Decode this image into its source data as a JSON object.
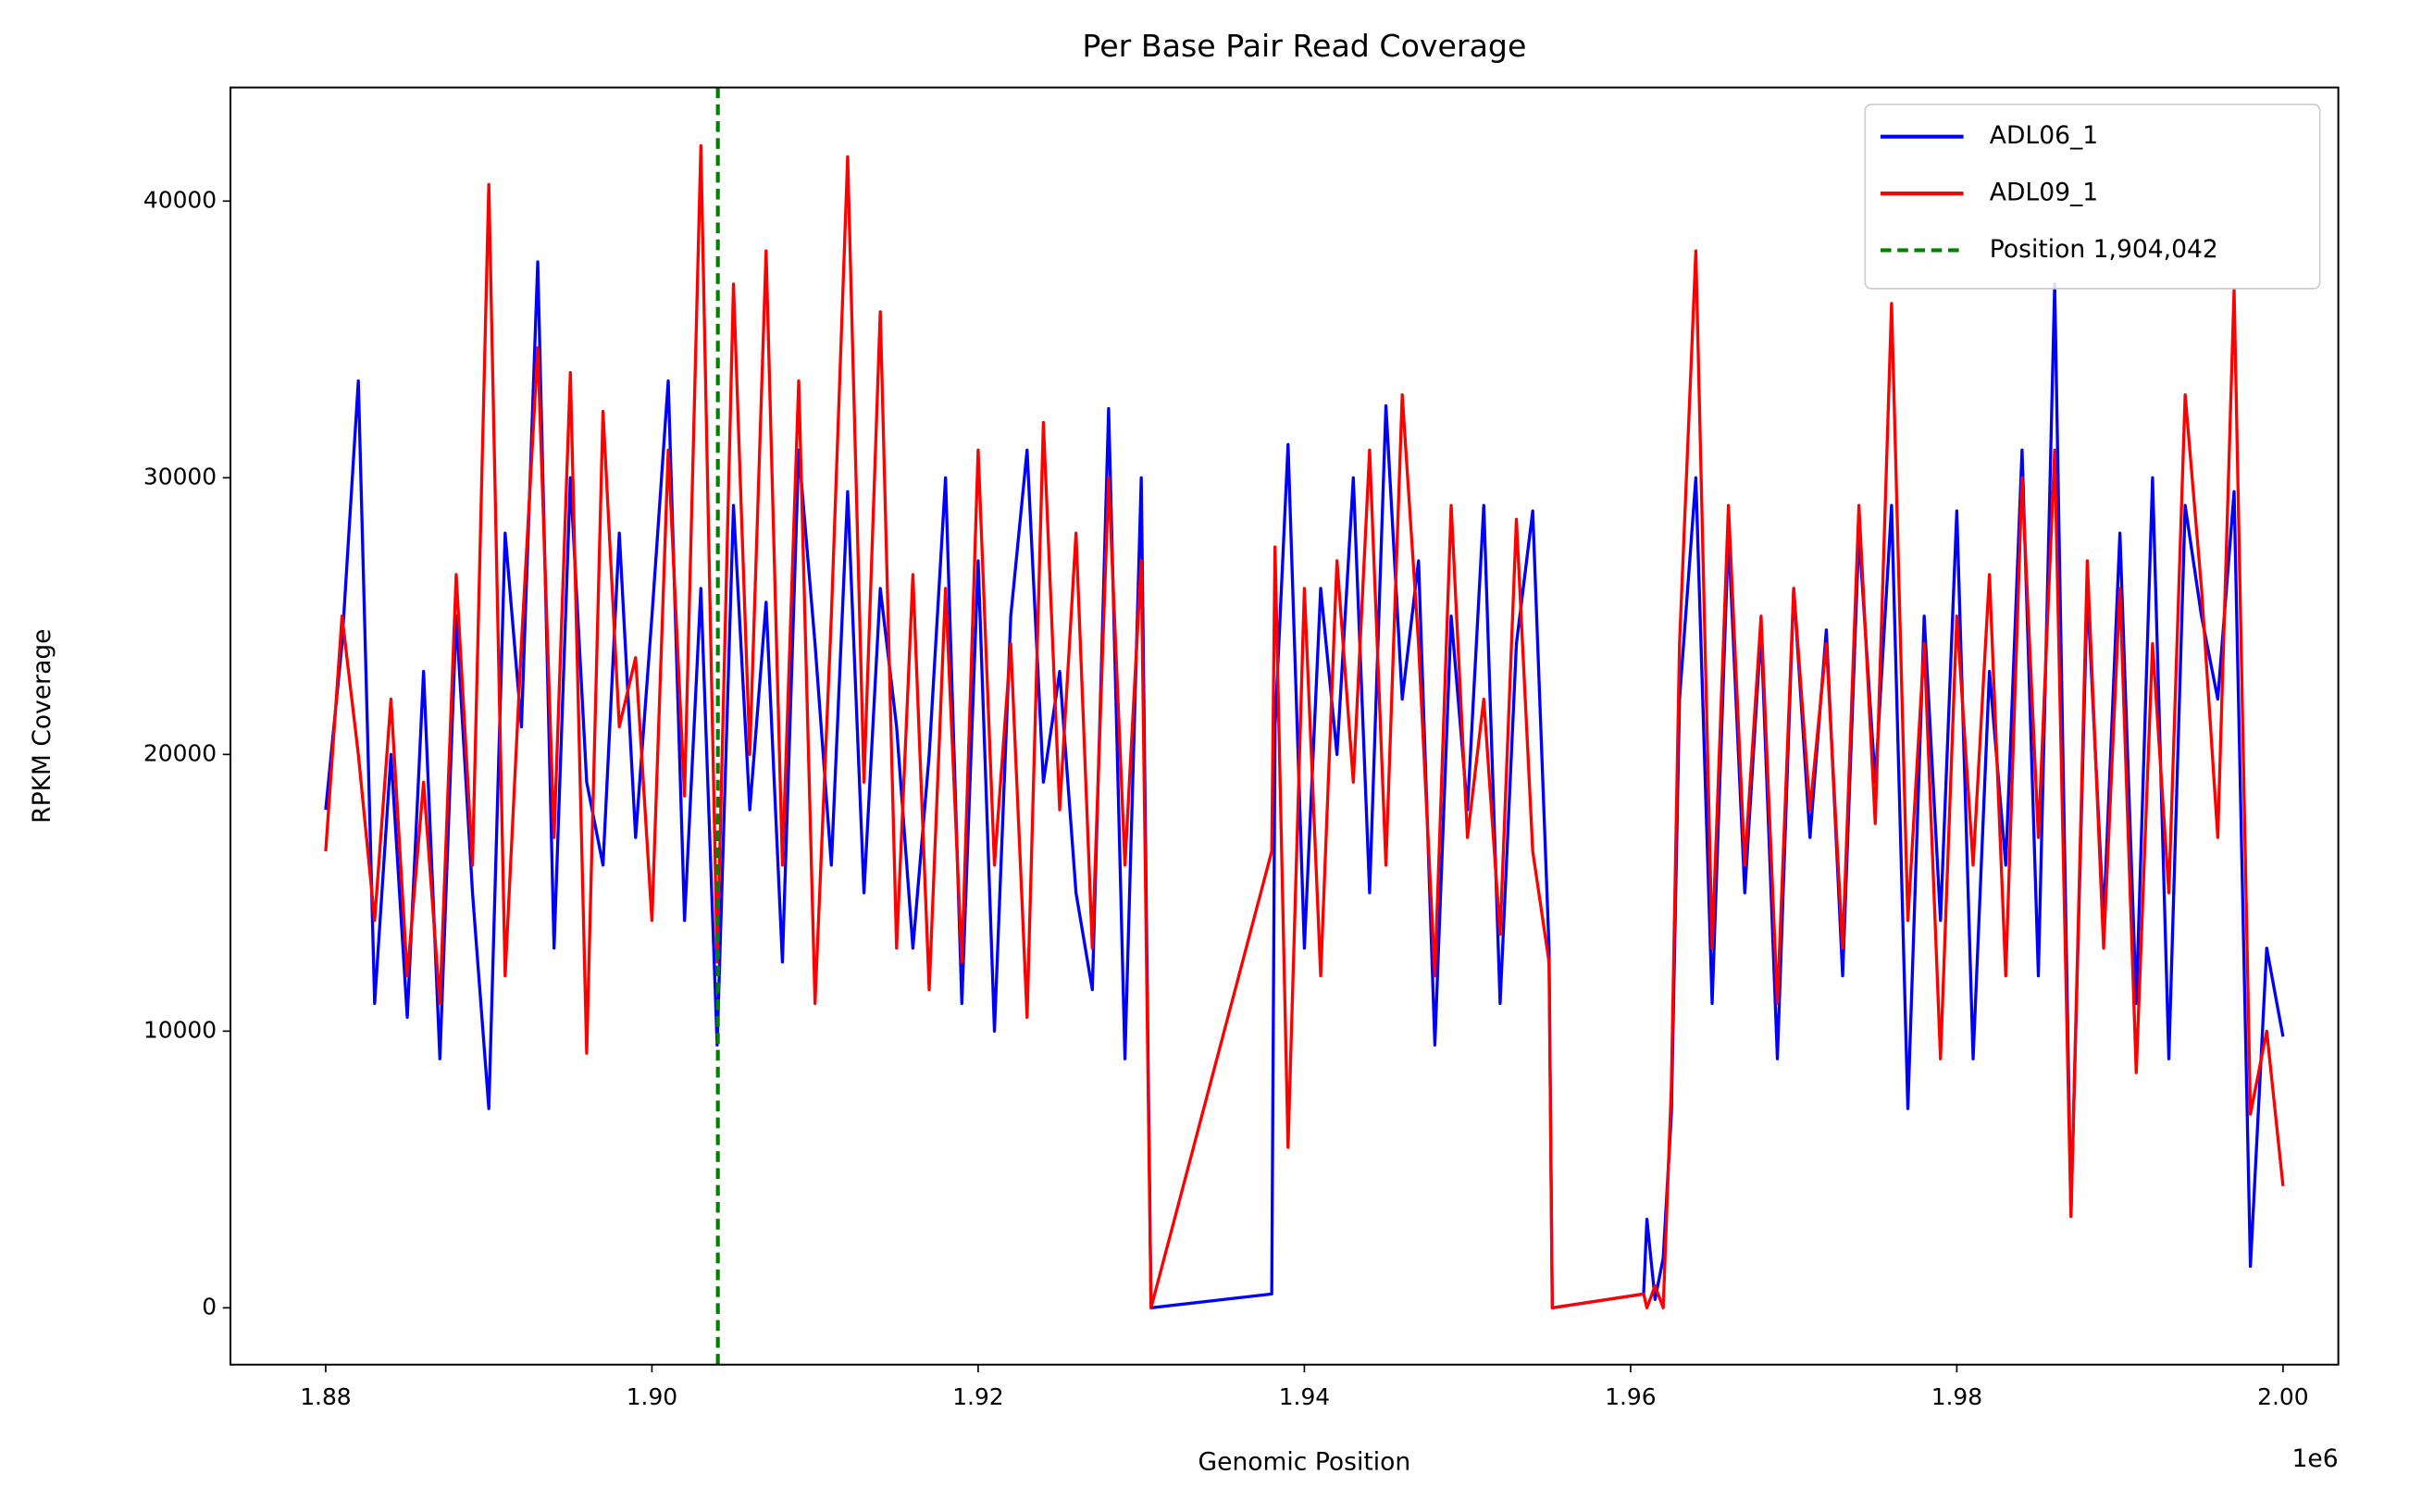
{
  "chart_data": {
    "type": "line",
    "title": "Per Base Pair Read Coverage",
    "x_label": "Genomic Position",
    "y_label": "RPKM Coverage",
    "x_offset_label": "1e6",
    "x": [
      1880000,
      1881000,
      1882000,
      1883000,
      1884000,
      1885000,
      1886000,
      1887000,
      1888000,
      1889000,
      1890000,
      1891000,
      1892000,
      1893000,
      1894000,
      1895000,
      1896000,
      1897000,
      1898000,
      1899000,
      1900000,
      1901000,
      1902000,
      1903000,
      1904000,
      1905000,
      1906000,
      1907000,
      1908000,
      1909000,
      1910000,
      1911000,
      1912000,
      1913000,
      1914000,
      1915000,
      1916000,
      1917000,
      1918000,
      1919000,
      1920000,
      1921000,
      1922000,
      1923000,
      1924000,
      1925000,
      1926000,
      1927000,
      1928000,
      1929000,
      1930000,
      1930600,
      1938000,
      1938200,
      1939000,
      1940000,
      1941000,
      1942000,
      1943000,
      1944000,
      1945000,
      1946000,
      1947000,
      1948000,
      1949000,
      1950000,
      1951000,
      1952000,
      1953000,
      1954000,
      1955000,
      1955200,
      1960800,
      1961000,
      1961500,
      1962000,
      1962500,
      1963000,
      1964000,
      1965000,
      1966000,
      1967000,
      1968000,
      1969000,
      1970000,
      1971000,
      1972000,
      1973000,
      1974000,
      1975000,
      1976000,
      1977000,
      1978000,
      1979000,
      1980000,
      1981000,
      1982000,
      1983000,
      1984000,
      1985000,
      1986000,
      1987000,
      1988000,
      1989000,
      1990000,
      1991000,
      1992000,
      1993000,
      1994000,
      1995000,
      1996000,
      1997000,
      1998000,
      1999000,
      2000000
    ],
    "series": [
      {
        "name": "ADL06_1",
        "color": "#0000ff",
        "values": [
          18000,
          24000,
          33500,
          11000,
          20000,
          10500,
          23000,
          9000,
          25000,
          15000,
          7200,
          28000,
          21000,
          37800,
          13000,
          30000,
          19000,
          16000,
          28000,
          17000,
          25000,
          33500,
          14000,
          26000,
          9500,
          29000,
          18000,
          25500,
          12500,
          31000,
          24000,
          16000,
          29500,
          15000,
          26000,
          21000,
          13000,
          20000,
          30000,
          11000,
          27000,
          10000,
          25000,
          31000,
          19000,
          23000,
          15000,
          11500,
          32500,
          9000,
          30000,
          0,
          500,
          21000,
          31200,
          13000,
          26000,
          20000,
          30000,
          15000,
          32600,
          22000,
          27000,
          9500,
          25000,
          18000,
          29000,
          11000,
          24000,
          28800,
          13000,
          0,
          500,
          3200,
          300,
          1800,
          7000,
          22000,
          30000,
          11000,
          28000,
          15000,
          24500,
          9000,
          26000,
          17000,
          24500,
          12000,
          28000,
          19000,
          29000,
          7200,
          25000,
          14000,
          28800,
          9000,
          23000,
          16000,
          31000,
          12000,
          37000,
          3400,
          26000,
          14000,
          28000,
          11000,
          30000,
          9000,
          29000,
          25000,
          22000,
          29500,
          1500,
          13000,
          9800
        ]
      },
      {
        "name": "ADL09_1",
        "color": "#ff0000",
        "values": [
          16500,
          25000,
          20000,
          14000,
          22000,
          12000,
          19000,
          11000,
          26500,
          16000,
          40600,
          12000,
          24000,
          34700,
          17000,
          33800,
          9200,
          32400,
          21000,
          23500,
          14000,
          31000,
          18500,
          42000,
          12500,
          37000,
          20000,
          38200,
          16000,
          33500,
          11000,
          25000,
          41600,
          19000,
          36000,
          13000,
          26500,
          11500,
          26000,
          12500,
          31000,
          16000,
          24000,
          10500,
          32000,
          18000,
          28000,
          13000,
          30000,
          16000,
          27000,
          0,
          16500,
          27500,
          5800,
          26000,
          12000,
          27000,
          19000,
          31000,
          16000,
          33000,
          24000,
          12000,
          29000,
          17000,
          22000,
          13500,
          28500,
          16500,
          12500,
          0,
          500,
          0,
          800,
          0,
          8000,
          24000,
          38200,
          13000,
          29000,
          16000,
          25000,
          11000,
          26000,
          18000,
          24000,
          13000,
          29000,
          17500,
          36300,
          14000,
          24000,
          9000,
          25000,
          16000,
          26500,
          12000,
          30000,
          17000,
          31000,
          3300,
          27000,
          13000,
          26000,
          8500,
          24000,
          15000,
          33000,
          26000,
          17000,
          36800,
          7000,
          10000,
          4400
        ]
      }
    ],
    "vline": {
      "x": 1904042,
      "label": "Position 1,904,042",
      "color": "#008000"
    },
    "xlim": [
      1874160,
      2003390
    ],
    "ylim": [
      -2053,
      44105
    ],
    "xticks": [
      {
        "value": 1880000,
        "label": "1.88"
      },
      {
        "value": 1900000,
        "label": "1.90"
      },
      {
        "value": 1920000,
        "label": "1.92"
      },
      {
        "value": 1940000,
        "label": "1.94"
      },
      {
        "value": 1960000,
        "label": "1.96"
      },
      {
        "value": 1980000,
        "label": "1.98"
      },
      {
        "value": 2000000,
        "label": "2.00"
      }
    ],
    "yticks": [
      0,
      10000,
      20000,
      30000,
      40000
    ],
    "legend": "upper right"
  }
}
